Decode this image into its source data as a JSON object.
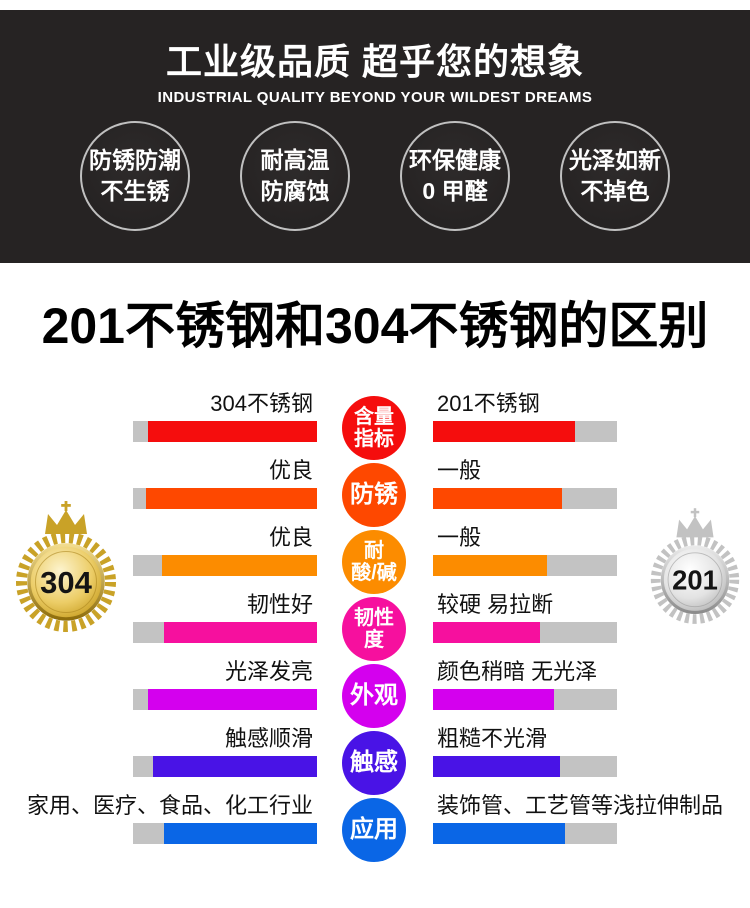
{
  "header": {
    "title": "工业级品质 超乎您的想象",
    "subtitle": "INDUSTRIAL QUALITY BEYOND YOUR WILDEST DREAMS",
    "background_color": "#262323",
    "features": [
      {
        "line1": "防锈防潮",
        "line2": "不生锈"
      },
      {
        "line1": "耐高温",
        "line2": "防腐蚀"
      },
      {
        "line1": "环保健康",
        "line2": "0 甲醛"
      },
      {
        "line1": "光泽如新",
        "line2": "不掉色"
      }
    ]
  },
  "section_title": "201不锈钢和304不锈钢的区别",
  "badges": {
    "left": {
      "value": "304",
      "theme": "gold"
    },
    "right": {
      "value": "201",
      "theme": "silver"
    }
  },
  "comparison": {
    "track_color": "#c3c3c3",
    "rows": [
      {
        "metric": "含量指标",
        "metric_line1": "含量",
        "metric_line2": "指标",
        "left_label": "304不锈钢",
        "right_label": "201不锈钢",
        "color": "#f50d0d",
        "left_fill": 92,
        "right_fill": 77
      },
      {
        "metric": "防锈",
        "metric_line1": "防锈",
        "metric_line2": "",
        "left_label": "优良",
        "right_label": "一般",
        "color": "#fe4800",
        "left_fill": 93,
        "right_fill": 70
      },
      {
        "metric": "耐酸/碱",
        "metric_line1": "耐",
        "metric_line2": "酸/碱",
        "left_label": "优良",
        "right_label": "一般",
        "color": "#fc8c00",
        "left_fill": 84,
        "right_fill": 62
      },
      {
        "metric": "韧性度",
        "metric_line1": "韧性",
        "metric_line2": "度",
        "left_label": "韧性好",
        "right_label": "较硬 易拉断",
        "color": "#f6109e",
        "left_fill": 83,
        "right_fill": 58
      },
      {
        "metric": "外观",
        "metric_line1": "外观",
        "metric_line2": "",
        "left_label": "光泽发亮",
        "right_label": "颜色稍暗 无光泽",
        "color": "#d400ee",
        "left_fill": 92,
        "right_fill": 66
      },
      {
        "metric": "触感",
        "metric_line1": "触感",
        "metric_line2": "",
        "left_label": "触感顺滑",
        "right_label": "粗糙不光滑",
        "color": "#4913e6",
        "left_fill": 89,
        "right_fill": 69
      },
      {
        "metric": "应用",
        "metric_line1": "应用",
        "metric_line2": "",
        "left_label": "家用、医疗、食品、化工行业",
        "right_label": "装饰管、工艺管等浅拉伸制品",
        "color": "#0a66e6",
        "left_fill": 83,
        "right_fill": 72
      }
    ]
  },
  "chart_data": {
    "type": "bar",
    "title": "201不锈钢和304不锈钢的区别",
    "categories": [
      "含量指标",
      "防锈",
      "耐酸/碱",
      "韧性度",
      "外观",
      "触感",
      "应用"
    ],
    "series": [
      {
        "name": "304不锈钢",
        "labels": [
          "304不锈钢",
          "优良",
          "优良",
          "韧性好",
          "光泽发亮",
          "触感顺滑",
          "家用、医疗、食品、化工行业"
        ],
        "values_pct": [
          92,
          93,
          84,
          83,
          92,
          89,
          83
        ]
      },
      {
        "name": "201不锈钢",
        "labels": [
          "201不锈钢",
          "一般",
          "一般",
          "较硬 易拉断",
          "颜色稍暗 无光泽",
          "粗糙不光滑",
          "装饰管、工艺管等浅拉伸制品"
        ],
        "values_pct": [
          77,
          70,
          62,
          58,
          66,
          69,
          72
        ]
      }
    ],
    "row_colors": [
      "#f50d0d",
      "#fe4800",
      "#fc8c00",
      "#f6109e",
      "#d400ee",
      "#4913e6",
      "#0a66e6"
    ],
    "legend_position": "badges-left-right",
    "grid": false,
    "xlim_pct": [
      0,
      100
    ]
  }
}
